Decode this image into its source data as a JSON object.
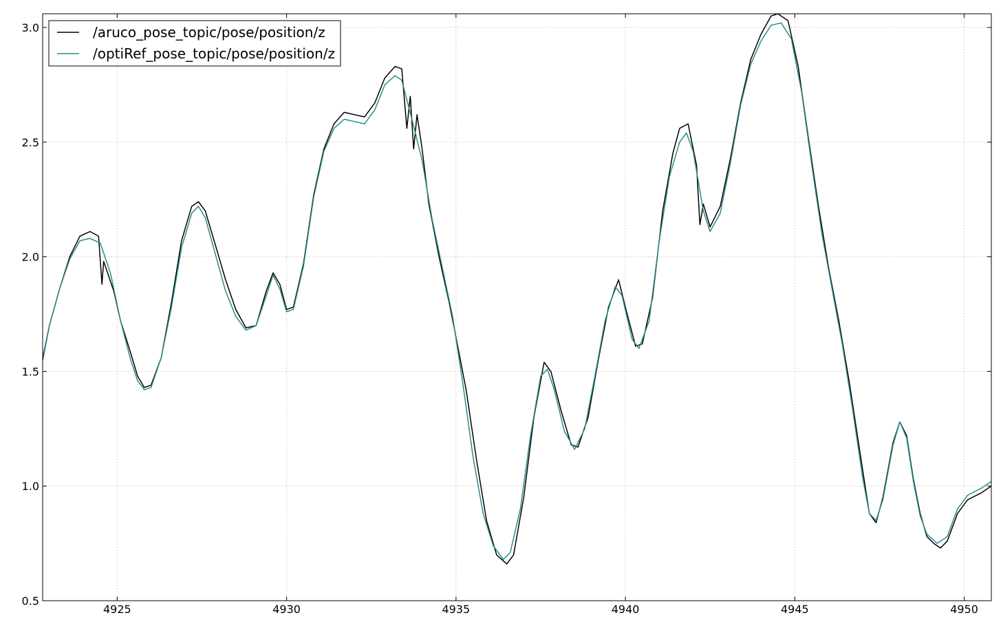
{
  "chart_data": {
    "type": "line",
    "title": "",
    "xlabel": "",
    "ylabel": "",
    "xlim": [
      4922.8,
      4950.8
    ],
    "ylim": [
      0.5,
      3.06
    ],
    "xticks": [
      4925,
      4930,
      4935,
      4940,
      4945,
      4950
    ],
    "yticks": [
      0.5,
      1.0,
      1.5,
      2.0,
      2.5,
      3.0
    ],
    "grid": true,
    "legend": "top-left",
    "series": [
      {
        "name": "/aruco_pose_topic/pose/position/z",
        "color": "#000000",
        "points": [
          [
            4922.8,
            1.55
          ],
          [
            4923.0,
            1.7
          ],
          [
            4923.3,
            1.86
          ],
          [
            4923.6,
            2.0
          ],
          [
            4923.9,
            2.09
          ],
          [
            4924.2,
            2.11
          ],
          [
            4924.45,
            2.09
          ],
          [
            4924.55,
            1.88
          ],
          [
            4924.6,
            1.98
          ],
          [
            4924.9,
            1.85
          ],
          [
            4925.1,
            1.72
          ],
          [
            4925.4,
            1.58
          ],
          [
            4925.6,
            1.48
          ],
          [
            4925.8,
            1.43
          ],
          [
            4926.0,
            1.44
          ],
          [
            4926.3,
            1.56
          ],
          [
            4926.6,
            1.8
          ],
          [
            4926.9,
            2.07
          ],
          [
            4927.2,
            2.22
          ],
          [
            4927.4,
            2.24
          ],
          [
            4927.6,
            2.2
          ],
          [
            4927.9,
            2.05
          ],
          [
            4928.2,
            1.9
          ],
          [
            4928.5,
            1.77
          ],
          [
            4928.8,
            1.69
          ],
          [
            4929.1,
            1.7
          ],
          [
            4929.4,
            1.85
          ],
          [
            4929.6,
            1.93
          ],
          [
            4929.8,
            1.88
          ],
          [
            4930.0,
            1.77
          ],
          [
            4930.2,
            1.78
          ],
          [
            4930.5,
            1.97
          ],
          [
            4930.8,
            2.27
          ],
          [
            4931.1,
            2.47
          ],
          [
            4931.4,
            2.58
          ],
          [
            4931.7,
            2.63
          ],
          [
            4932.0,
            2.62
          ],
          [
            4932.3,
            2.61
          ],
          [
            4932.6,
            2.67
          ],
          [
            4932.9,
            2.78
          ],
          [
            4933.2,
            2.83
          ],
          [
            4933.4,
            2.82
          ],
          [
            4933.55,
            2.56
          ],
          [
            4933.65,
            2.7
          ],
          [
            4933.75,
            2.47
          ],
          [
            4933.85,
            2.62
          ],
          [
            4934.0,
            2.47
          ],
          [
            4934.2,
            2.23
          ],
          [
            4934.5,
            2.0
          ],
          [
            4934.8,
            1.8
          ],
          [
            4935.0,
            1.65
          ],
          [
            4935.3,
            1.42
          ],
          [
            4935.6,
            1.12
          ],
          [
            4935.9,
            0.85
          ],
          [
            4936.2,
            0.7
          ],
          [
            4936.5,
            0.66
          ],
          [
            4936.7,
            0.7
          ],
          [
            4937.0,
            0.95
          ],
          [
            4937.3,
            1.3
          ],
          [
            4937.6,
            1.54
          ],
          [
            4937.8,
            1.5
          ],
          [
            4938.1,
            1.33
          ],
          [
            4938.4,
            1.18
          ],
          [
            4938.6,
            1.17
          ],
          [
            4938.9,
            1.3
          ],
          [
            4939.2,
            1.55
          ],
          [
            4939.5,
            1.78
          ],
          [
            4939.8,
            1.9
          ],
          [
            4940.0,
            1.78
          ],
          [
            4940.3,
            1.61
          ],
          [
            4940.5,
            1.62
          ],
          [
            4940.8,
            1.82
          ],
          [
            4941.1,
            2.2
          ],
          [
            4941.4,
            2.45
          ],
          [
            4941.6,
            2.56
          ],
          [
            4941.85,
            2.58
          ],
          [
            4942.1,
            2.4
          ],
          [
            4942.2,
            2.14
          ],
          [
            4942.3,
            2.23
          ],
          [
            4942.5,
            2.13
          ],
          [
            4942.8,
            2.22
          ],
          [
            4943.1,
            2.43
          ],
          [
            4943.4,
            2.67
          ],
          [
            4943.7,
            2.86
          ],
          [
            4944.0,
            2.97
          ],
          [
            4944.3,
            3.05
          ],
          [
            4944.5,
            3.06
          ],
          [
            4944.8,
            3.03
          ],
          [
            4945.1,
            2.83
          ],
          [
            4945.4,
            2.52
          ],
          [
            4945.7,
            2.22
          ],
          [
            4946.0,
            1.95
          ],
          [
            4946.3,
            1.72
          ],
          [
            4946.6,
            1.46
          ],
          [
            4946.9,
            1.17
          ],
          [
            4947.2,
            0.88
          ],
          [
            4947.4,
            0.84
          ],
          [
            4947.6,
            0.95
          ],
          [
            4947.9,
            1.19
          ],
          [
            4948.1,
            1.28
          ],
          [
            4948.3,
            1.22
          ],
          [
            4948.5,
            1.03
          ],
          [
            4948.7,
            0.88
          ],
          [
            4948.9,
            0.78
          ],
          [
            4949.1,
            0.75
          ],
          [
            4949.3,
            0.73
          ],
          [
            4949.5,
            0.76
          ],
          [
            4949.8,
            0.88
          ],
          [
            4950.1,
            0.94
          ],
          [
            4950.5,
            0.97
          ],
          [
            4950.8,
            1.0
          ]
        ]
      },
      {
        "name": "/optiRef_pose_topic/pose/position/z",
        "color": "#2b8a8a",
        "points": [
          [
            4922.8,
            1.56
          ],
          [
            4923.0,
            1.7
          ],
          [
            4923.3,
            1.86
          ],
          [
            4923.6,
            1.99
          ],
          [
            4923.9,
            2.07
          ],
          [
            4924.2,
            2.08
          ],
          [
            4924.5,
            2.06
          ],
          [
            4924.8,
            1.93
          ],
          [
            4925.1,
            1.72
          ],
          [
            4925.4,
            1.55
          ],
          [
            4925.6,
            1.46
          ],
          [
            4925.8,
            1.42
          ],
          [
            4926.0,
            1.43
          ],
          [
            4926.3,
            1.56
          ],
          [
            4926.6,
            1.78
          ],
          [
            4926.9,
            2.04
          ],
          [
            4927.2,
            2.19
          ],
          [
            4927.4,
            2.22
          ],
          [
            4927.6,
            2.17
          ],
          [
            4927.9,
            2.01
          ],
          [
            4928.2,
            1.85
          ],
          [
            4928.5,
            1.74
          ],
          [
            4928.8,
            1.68
          ],
          [
            4929.1,
            1.7
          ],
          [
            4929.4,
            1.83
          ],
          [
            4929.6,
            1.92
          ],
          [
            4929.8,
            1.86
          ],
          [
            4930.0,
            1.76
          ],
          [
            4930.2,
            1.77
          ],
          [
            4930.5,
            1.96
          ],
          [
            4930.8,
            2.26
          ],
          [
            4931.1,
            2.46
          ],
          [
            4931.4,
            2.56
          ],
          [
            4931.7,
            2.6
          ],
          [
            4932.0,
            2.59
          ],
          [
            4932.3,
            2.58
          ],
          [
            4932.6,
            2.64
          ],
          [
            4932.9,
            2.75
          ],
          [
            4933.2,
            2.79
          ],
          [
            4933.4,
            2.77
          ],
          [
            4933.7,
            2.6
          ],
          [
            4934.0,
            2.42
          ],
          [
            4934.3,
            2.16
          ],
          [
            4934.6,
            1.95
          ],
          [
            4934.9,
            1.74
          ],
          [
            4935.2,
            1.45
          ],
          [
            4935.5,
            1.13
          ],
          [
            4935.8,
            0.88
          ],
          [
            4936.1,
            0.74
          ],
          [
            4936.4,
            0.68
          ],
          [
            4936.6,
            0.71
          ],
          [
            4936.9,
            0.9
          ],
          [
            4937.2,
            1.22
          ],
          [
            4937.5,
            1.48
          ],
          [
            4937.7,
            1.51
          ],
          [
            4937.9,
            1.42
          ],
          [
            4938.2,
            1.24
          ],
          [
            4938.5,
            1.16
          ],
          [
            4938.8,
            1.25
          ],
          [
            4939.1,
            1.48
          ],
          [
            4939.4,
            1.72
          ],
          [
            4939.7,
            1.87
          ],
          [
            4939.9,
            1.83
          ],
          [
            4940.2,
            1.64
          ],
          [
            4940.4,
            1.6
          ],
          [
            4940.7,
            1.72
          ],
          [
            4941.0,
            2.07
          ],
          [
            4941.3,
            2.35
          ],
          [
            4941.6,
            2.5
          ],
          [
            4941.8,
            2.54
          ],
          [
            4942.0,
            2.46
          ],
          [
            4942.3,
            2.2
          ],
          [
            4942.5,
            2.11
          ],
          [
            4942.8,
            2.19
          ],
          [
            4943.1,
            2.41
          ],
          [
            4943.4,
            2.66
          ],
          [
            4943.7,
            2.84
          ],
          [
            4944.0,
            2.94
          ],
          [
            4944.3,
            3.01
          ],
          [
            4944.6,
            3.02
          ],
          [
            4944.9,
            2.95
          ],
          [
            4945.2,
            2.72
          ],
          [
            4945.5,
            2.4
          ],
          [
            4945.8,
            2.1
          ],
          [
            4946.1,
            1.86
          ],
          [
            4946.4,
            1.62
          ],
          [
            4946.7,
            1.34
          ],
          [
            4947.0,
            1.04
          ],
          [
            4947.2,
            0.88
          ],
          [
            4947.4,
            0.85
          ],
          [
            4947.6,
            0.94
          ],
          [
            4947.9,
            1.18
          ],
          [
            4948.1,
            1.28
          ],
          [
            4948.3,
            1.21
          ],
          [
            4948.5,
            1.02
          ],
          [
            4948.7,
            0.87
          ],
          [
            4948.9,
            0.79
          ],
          [
            4949.2,
            0.75
          ],
          [
            4949.5,
            0.78
          ],
          [
            4949.8,
            0.9
          ],
          [
            4950.1,
            0.96
          ],
          [
            4950.5,
            0.99
          ],
          [
            4950.8,
            1.02
          ]
        ]
      }
    ]
  }
}
